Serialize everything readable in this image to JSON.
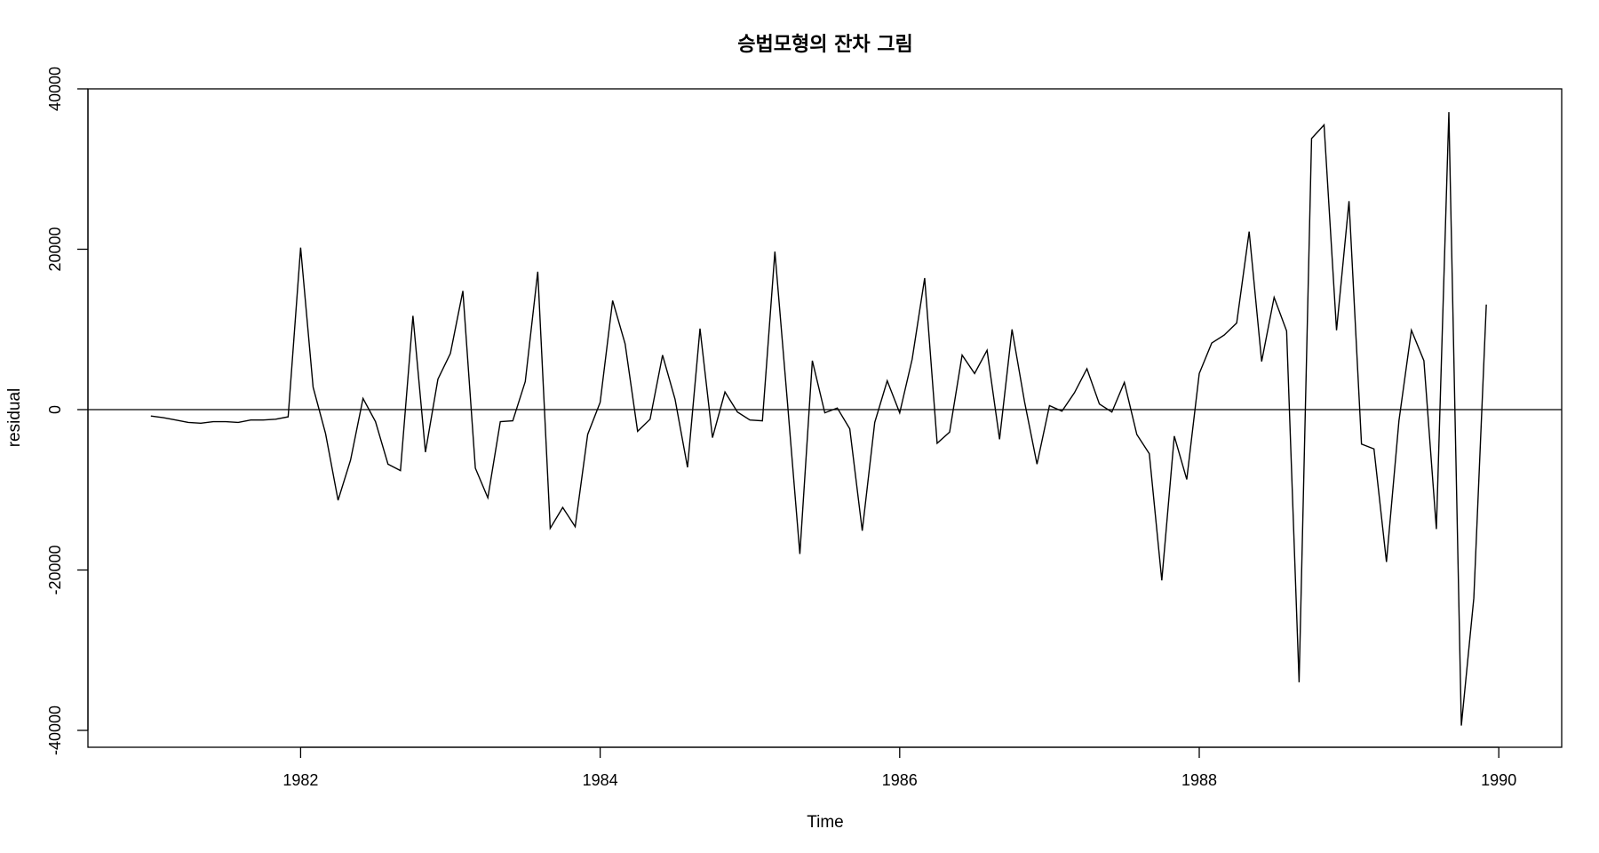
{
  "chart_data": {
    "type": "line",
    "title": "승법모형의 잔차 그림",
    "xlabel": "Time",
    "ylabel": "residual",
    "xlim": [
      1980.58,
      1990.42
    ],
    "ylim": [
      -42500,
      40000
    ],
    "x_ticks": [
      1982,
      1984,
      1986,
      1988,
      1990
    ],
    "y_ticks": [
      -40000,
      -20000,
      0,
      20000,
      40000
    ],
    "x_tick_labels": [
      "1982",
      "1984",
      "1986",
      "1988",
      "1990"
    ],
    "y_tick_labels": [
      "-40000",
      "-20000",
      "0",
      "20000",
      "40000"
    ],
    "reference_line": 0,
    "grid": false,
    "legend": "none",
    "x_start": 1981.0,
    "x_step": 0.0833333,
    "series": [
      {
        "values": [
          -800,
          -1000,
          -1300,
          -1600,
          -1700,
          -1500,
          -1500,
          -1600,
          -1300,
          -1300,
          -1200,
          -900,
          20200,
          2800,
          -3000,
          -11300,
          -6300,
          1400,
          -1500,
          -6800,
          -7600,
          11700,
          -5300,
          3800,
          7000,
          14800,
          -7300,
          -11000,
          -1500,
          -1400,
          3500,
          17200,
          -14800,
          -12200,
          -14600,
          -3100,
          900,
          13600,
          8200,
          -2700,
          -1200,
          6800,
          1300,
          -7200,
          10100,
          -3500,
          2200,
          -300,
          -1300,
          -1400,
          19700,
          1000,
          -18000,
          6100,
          -400,
          200,
          -2400,
          -15100,
          -1600,
          3600,
          -400,
          6300,
          16400,
          -4200,
          -2800,
          6800,
          4500,
          7400,
          -3700,
          10000,
          1000,
          -6800,
          500,
          -200,
          2100,
          5100,
          700,
          -300,
          3400,
          -3100,
          -5500,
          -21300,
          -3300,
          -8700,
          4500,
          8300,
          9300,
          10800,
          22200,
          6000,
          14000,
          9800,
          -34000,
          33800,
          35500,
          9900,
          26000,
          -4300,
          -4900,
          -19000,
          -1400,
          9900,
          6100,
          -14900,
          37100,
          -39400,
          -23500,
          13100
        ]
      }
    ]
  }
}
